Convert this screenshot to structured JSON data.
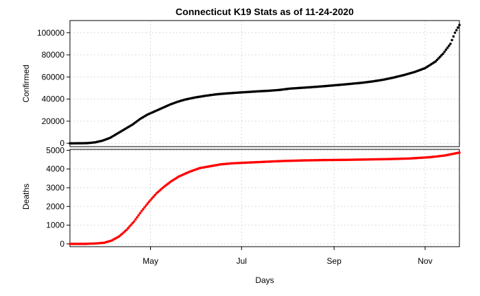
{
  "chart_data": [
    {
      "type": "scatter",
      "title": "Connecticut K19 Stats as of 11-24-2020",
      "ylabel": "Confirmed",
      "xlabel": "",
      "color": "#000000",
      "x_start": "2020-03-08",
      "x_end": "2020-11-24",
      "ylim": [
        -3000,
        111000
      ],
      "yticks": [
        0,
        20000,
        40000,
        60000,
        80000,
        100000
      ],
      "grid": true,
      "series": [
        {
          "points": [
            [
              "2020-03-08",
              0
            ],
            [
              "2020-03-15",
              40
            ],
            [
              "2020-03-20",
              200
            ],
            [
              "2020-03-25",
              900
            ],
            [
              "2020-03-30",
              2500
            ],
            [
              "2020-04-04",
              5000
            ],
            [
              "2020-04-09",
              9000
            ],
            [
              "2020-04-14",
              13000
            ],
            [
              "2020-04-19",
              17000
            ],
            [
              "2020-04-24",
              22000
            ],
            [
              "2020-04-29",
              26000
            ],
            [
              "2020-05-04",
              29000
            ],
            [
              "2020-05-09",
              32000
            ],
            [
              "2020-05-14",
              35000
            ],
            [
              "2020-05-19",
              37500
            ],
            [
              "2020-05-24",
              39500
            ],
            [
              "2020-05-31",
              41500
            ],
            [
              "2020-06-07",
              43000
            ],
            [
              "2020-06-14",
              44300
            ],
            [
              "2020-06-21",
              45100
            ],
            [
              "2020-06-28",
              45800
            ],
            [
              "2020-07-05",
              46400
            ],
            [
              "2020-07-12",
              47000
            ],
            [
              "2020-07-19",
              47500
            ],
            [
              "2020-07-26",
              48200
            ],
            [
              "2020-08-02",
              49400
            ],
            [
              "2020-08-09",
              50100
            ],
            [
              "2020-08-16",
              50700
            ],
            [
              "2020-08-23",
              51400
            ],
            [
              "2020-08-30",
              52200
            ],
            [
              "2020-09-06",
              53000
            ],
            [
              "2020-09-13",
              53900
            ],
            [
              "2020-09-20",
              54800
            ],
            [
              "2020-09-27",
              56000
            ],
            [
              "2020-10-04",
              57500
            ],
            [
              "2020-10-11",
              59500
            ],
            [
              "2020-10-18",
              61800
            ],
            [
              "2020-10-25",
              64500
            ],
            [
              "2020-11-01",
              68000
            ],
            [
              "2020-11-08",
              74000
            ],
            [
              "2020-11-13",
              81000
            ],
            [
              "2020-11-18",
              90000
            ],
            [
              "2020-11-21",
              100000
            ],
            [
              "2020-11-24",
              107000
            ]
          ]
        }
      ]
    },
    {
      "type": "scatter",
      "title": "",
      "ylabel": "Deaths",
      "xlabel": "Days",
      "color": "#ff0000",
      "x_start": "2020-03-08",
      "x_end": "2020-11-24",
      "xticks": [
        {
          "label": "May",
          "date": "2020-05-01"
        },
        {
          "label": "Jul",
          "date": "2020-07-01"
        },
        {
          "label": "Sep",
          "date": "2020-09-01"
        },
        {
          "label": "Nov",
          "date": "2020-11-01"
        }
      ],
      "ylim": [
        -150,
        5050
      ],
      "yticks": [
        0,
        1000,
        2000,
        3000,
        4000,
        5000
      ],
      "grid": true,
      "series": [
        {
          "points": [
            [
              "2020-03-08",
              0
            ],
            [
              "2020-03-18",
              0
            ],
            [
              "2020-03-25",
              20
            ],
            [
              "2020-03-31",
              60
            ],
            [
              "2020-04-05",
              180
            ],
            [
              "2020-04-10",
              400
            ],
            [
              "2020-04-15",
              750
            ],
            [
              "2020-04-20",
              1200
            ],
            [
              "2020-04-25",
              1750
            ],
            [
              "2020-04-30",
              2250
            ],
            [
              "2020-05-05",
              2700
            ],
            [
              "2020-05-10",
              3050
            ],
            [
              "2020-05-15",
              3350
            ],
            [
              "2020-05-20",
              3600
            ],
            [
              "2020-05-27",
              3850
            ],
            [
              "2020-06-03",
              4050
            ],
            [
              "2020-06-10",
              4150
            ],
            [
              "2020-06-17",
              4250
            ],
            [
              "2020-06-24",
              4300
            ],
            [
              "2020-07-01",
              4330
            ],
            [
              "2020-07-15",
              4380
            ],
            [
              "2020-07-29",
              4430
            ],
            [
              "2020-08-12",
              4460
            ],
            [
              "2020-08-26",
              4480
            ],
            [
              "2020-09-09",
              4490
            ],
            [
              "2020-09-23",
              4510
            ],
            [
              "2020-10-07",
              4530
            ],
            [
              "2020-10-21",
              4560
            ],
            [
              "2020-11-04",
              4630
            ],
            [
              "2020-11-14",
              4720
            ],
            [
              "2020-11-24",
              4880
            ]
          ]
        }
      ]
    }
  ]
}
